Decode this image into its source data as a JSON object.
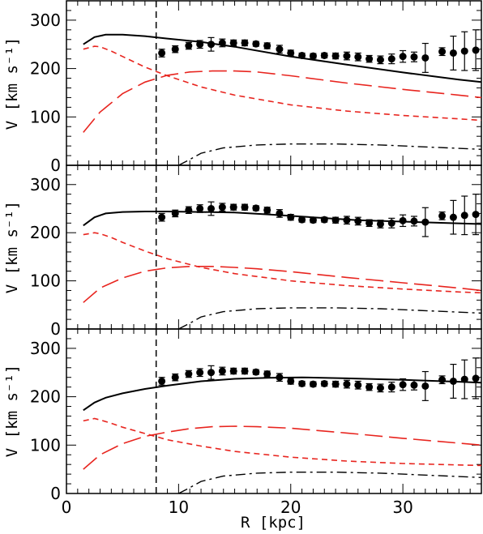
{
  "chart_data": [
    {
      "type": "line",
      "panel": "top",
      "xlabel": "R [kpc]",
      "ylabel": "V [km s⁻¹]",
      "xlim": [
        0,
        37
      ],
      "ylim": [
        0,
        340
      ],
      "xticks": [
        0,
        10,
        20,
        30
      ],
      "yticks": [
        0,
        100,
        200,
        300
      ],
      "vline_x": 8,
      "series": [
        {
          "style": "solid",
          "color": "#000000",
          "x": [
            1.5,
            2.5,
            3.5,
            5,
            7,
            9,
            12,
            15,
            20,
            25,
            30,
            35,
            37
          ],
          "y": [
            250,
            265,
            270,
            270,
            267,
            262,
            255,
            245,
            225,
            208,
            192,
            177,
            172
          ]
        },
        {
          "style": "short-dash",
          "color": "#e8251f",
          "x": [
            1.5,
            2.5,
            3,
            4,
            5,
            7,
            9,
            12,
            15,
            20,
            25,
            30,
            35,
            37
          ],
          "y": [
            240,
            246,
            245,
            236,
            225,
            203,
            185,
            162,
            145,
            125,
            112,
            103,
            96,
            93
          ]
        },
        {
          "style": "long-dash",
          "color": "#e8251f",
          "x": [
            1.5,
            3,
            5,
            7,
            9,
            11,
            13,
            15,
            17,
            20,
            25,
            30,
            35,
            37
          ],
          "y": [
            68,
            110,
            148,
            172,
            186,
            193,
            195,
            195,
            193,
            185,
            170,
            157,
            145,
            140
          ]
        },
        {
          "style": "dash-dot",
          "color": "#000000",
          "x": [
            10,
            11,
            12,
            14,
            17,
            20,
            24,
            28,
            32,
            37
          ],
          "y": [
            0,
            12,
            25,
            36,
            42,
            44,
            44,
            42,
            38,
            33
          ]
        }
      ]
    },
    {
      "type": "line",
      "panel": "middle",
      "xlabel": "R [kpc]",
      "ylabel": "V [km s⁻¹]",
      "xlim": [
        0,
        37
      ],
      "ylim": [
        0,
        340
      ],
      "xticks": [
        0,
        10,
        20,
        30
      ],
      "yticks": [
        0,
        100,
        200,
        300
      ],
      "vline_x": 8,
      "series": [
        {
          "style": "solid",
          "color": "#000000",
          "x": [
            1.5,
            2.5,
            3.5,
            5,
            7,
            9,
            12,
            15,
            18,
            22,
            26,
            30,
            34,
            37
          ],
          "y": [
            215,
            232,
            240,
            243,
            244,
            244,
            243,
            242,
            238,
            232,
            226,
            223,
            220,
            218
          ]
        },
        {
          "style": "short-dash",
          "color": "#e8251f",
          "x": [
            1.5,
            2.5,
            3,
            4,
            5,
            7,
            9,
            12,
            15,
            20,
            25,
            30,
            35,
            37
          ],
          "y": [
            196,
            200,
            198,
            190,
            180,
            162,
            146,
            128,
            115,
            100,
            90,
            83,
            77,
            75
          ]
        },
        {
          "style": "long-dash",
          "color": "#e8251f",
          "x": [
            1.5,
            3,
            5,
            7,
            9,
            11,
            13,
            15,
            17,
            20,
            25,
            30,
            35,
            37
          ],
          "y": [
            55,
            85,
            106,
            120,
            127,
            130,
            130,
            128,
            125,
            119,
            107,
            96,
            85,
            80
          ]
        },
        {
          "style": "dash-dot",
          "color": "#000000",
          "x": [
            10,
            11,
            12,
            14,
            17,
            20,
            24,
            28,
            32,
            37
          ],
          "y": [
            0,
            12,
            25,
            36,
            42,
            44,
            44,
            42,
            38,
            33
          ]
        }
      ]
    },
    {
      "type": "line",
      "panel": "bottom",
      "xlabel": "R [kpc]",
      "ylabel": "V [km s⁻¹]",
      "xlim": [
        0,
        37
      ],
      "ylim": [
        0,
        340
      ],
      "xticks": [
        0,
        10,
        20,
        30
      ],
      "yticks": [
        0,
        100,
        200,
        300
      ],
      "vline_x": 8,
      "series": [
        {
          "style": "solid",
          "color": "#000000",
          "x": [
            1.5,
            2.5,
            3.5,
            5,
            7,
            9,
            12,
            15,
            18,
            21,
            25,
            30,
            35,
            37
          ],
          "y": [
            172,
            188,
            198,
            207,
            216,
            223,
            232,
            237,
            239,
            240,
            238,
            235,
            231,
            229
          ]
        },
        {
          "style": "short-dash",
          "color": "#e8251f",
          "x": [
            1.5,
            2.5,
            3,
            4,
            5,
            7,
            9,
            12,
            15,
            20,
            25,
            30,
            35,
            37
          ],
          "y": [
            150,
            155,
            152,
            145,
            137,
            124,
            111,
            98,
            87,
            75,
            67,
            62,
            59,
            58
          ]
        },
        {
          "style": "long-dash",
          "color": "#e8251f",
          "x": [
            1.5,
            3,
            5,
            7,
            9,
            11,
            13,
            15,
            17,
            20,
            25,
            30,
            35,
            37
          ],
          "y": [
            50,
            80,
            103,
            118,
            127,
            134,
            138,
            139,
            138,
            135,
            125,
            114,
            104,
            100
          ]
        },
        {
          "style": "dash-dot",
          "color": "#000000",
          "x": [
            10,
            11,
            12,
            14,
            17,
            20,
            24,
            28,
            32,
            37
          ],
          "y": [
            0,
            12,
            25,
            36,
            42,
            44,
            44,
            42,
            38,
            33
          ]
        }
      ]
    }
  ],
  "observed_points": {
    "x": [
      8.5,
      9.7,
      10.9,
      11.9,
      12.9,
      13.9,
      14.9,
      15.9,
      16.9,
      17.9,
      19.0,
      20.0,
      21.0,
      22.0,
      23.0,
      24.0,
      25.0,
      26.0,
      27.0,
      28.0,
      29.0,
      30.0,
      31.0,
      32.0,
      33.5,
      34.5,
      35.5,
      36.5
    ],
    "y": [
      232,
      240,
      247,
      250,
      250,
      253,
      253,
      253,
      251,
      247,
      240,
      232,
      227,
      226,
      227,
      226,
      226,
      224,
      220,
      218,
      220,
      225,
      224,
      222,
      235,
      232,
      236,
      238
    ],
    "err": [
      8,
      7,
      7,
      8,
      14,
      8,
      6,
      6,
      5,
      6,
      8,
      6,
      5,
      5,
      5,
      6,
      8,
      8,
      7,
      8,
      10,
      12,
      10,
      30,
      8,
      35,
      40,
      42
    ]
  },
  "colors": {
    "axis": "#000000",
    "model_total": "#000000",
    "components": "#e8251f",
    "points": "#000000"
  }
}
